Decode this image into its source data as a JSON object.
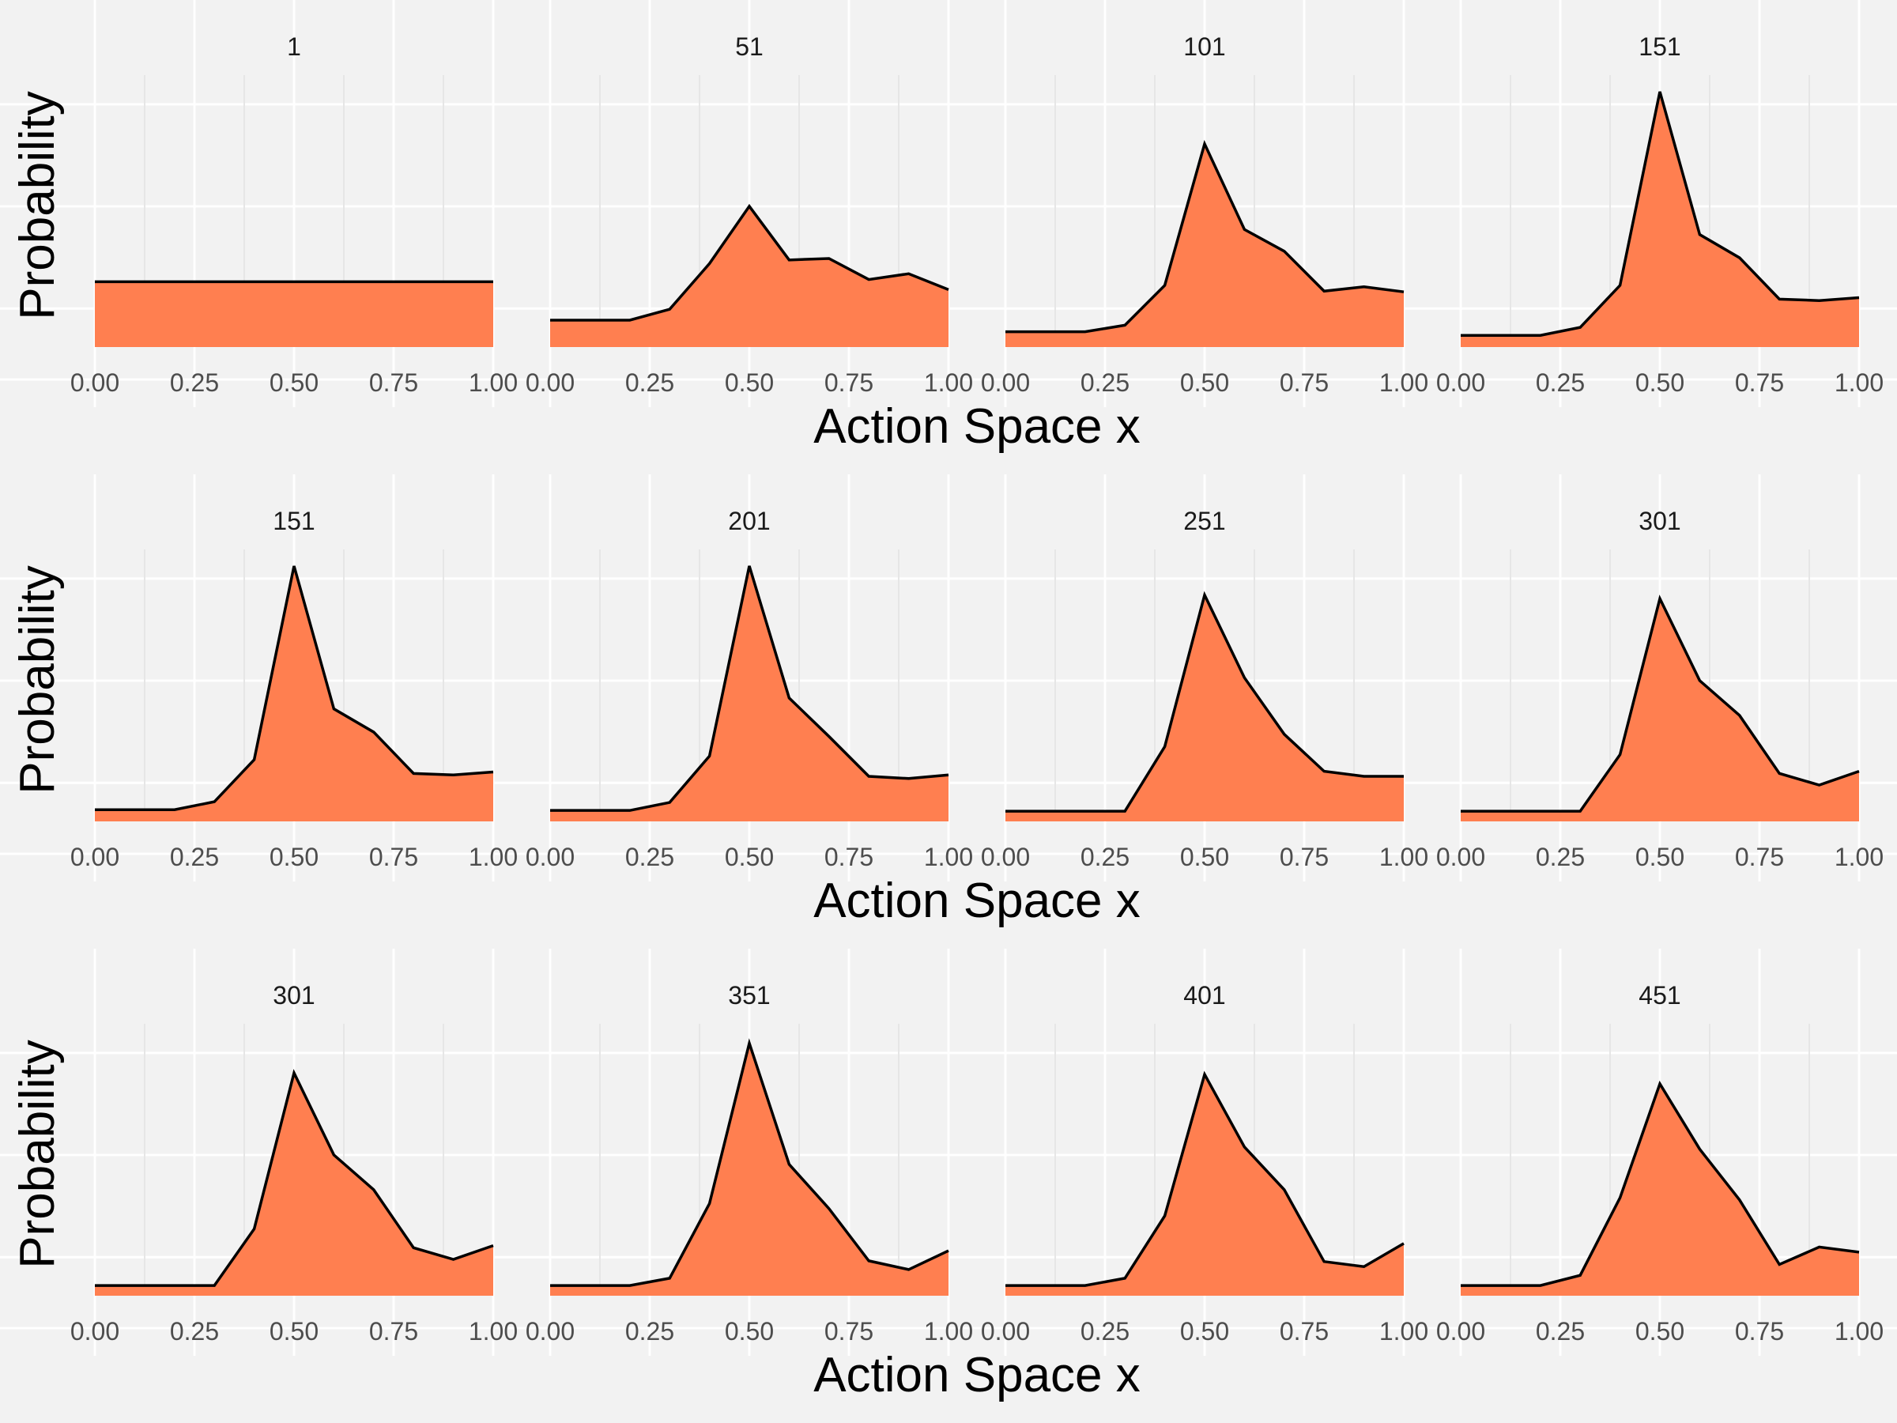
{
  "chart_data": {
    "type": "area",
    "layout": "faceted 3 rows x 4 columns",
    "xlabel": "Action Space x",
    "ylabel": "Probability",
    "x": [
      0.0,
      0.1,
      0.2,
      0.3,
      0.4,
      0.5,
      0.6,
      0.7,
      0.8,
      0.9,
      1.0
    ],
    "x_ticks": [
      "0.00",
      "0.25",
      "0.50",
      "0.75",
      "1.00"
    ],
    "xlim": [
      0,
      1
    ],
    "ylim": [
      0,
      0.34
    ],
    "y_tick_labels_shown": false,
    "grid": true,
    "colors": {
      "fill": "#ff7f50",
      "line": "#000000",
      "background": "#f2f2f2",
      "grid": "#ffffff"
    },
    "rows": [
      {
        "panels": [
          {
            "title": "1",
            "values": [
              0.0769,
              0.0769,
              0.0769,
              0.0769,
              0.0769,
              0.0769,
              0.0769,
              0.0769,
              0.0769,
              0.0769,
              0.0769
            ]
          },
          {
            "title": "51",
            "values": [
              0.024,
              0.024,
              0.024,
              0.039,
              0.102,
              0.181,
              0.107,
              0.109,
              0.08,
              0.088,
              0.066
            ]
          },
          {
            "title": "101",
            "values": [
              0.008,
              0.008,
              0.008,
              0.017,
              0.072,
              0.267,
              0.149,
              0.119,
              0.064,
              0.07,
              0.063
            ]
          },
          {
            "title": "151",
            "values": [
              0.003,
              0.003,
              0.003,
              0.014,
              0.072,
              0.339,
              0.142,
              0.11,
              0.053,
              0.051,
              0.055
            ]
          }
        ]
      },
      {
        "panels": [
          {
            "title": "151",
            "values": [
              0.003,
              0.003,
              0.003,
              0.014,
              0.072,
              0.339,
              0.142,
              0.11,
              0.053,
              0.051,
              0.055
            ]
          },
          {
            "title": "201",
            "values": [
              0.002,
              0.002,
              0.002,
              0.013,
              0.077,
              0.339,
              0.157,
              0.104,
              0.049,
              0.046,
              0.051
            ]
          },
          {
            "title": "251",
            "values": [
              0.001,
              0.001,
              0.001,
              0.001,
              0.09,
              0.299,
              0.185,
              0.107,
              0.056,
              0.049,
              0.049
            ]
          },
          {
            "title": "301",
            "values": [
              0.001,
              0.001,
              0.001,
              0.001,
              0.079,
              0.294,
              0.181,
              0.133,
              0.053,
              0.037,
              0.056
            ]
          }
        ]
      },
      {
        "panels": [
          {
            "title": "301",
            "values": [
              0.001,
              0.001,
              0.001,
              0.001,
              0.079,
              0.294,
              0.181,
              0.133,
              0.053,
              0.037,
              0.056
            ]
          },
          {
            "title": "351",
            "values": [
              0.001,
              0.001,
              0.001,
              0.011,
              0.114,
              0.335,
              0.168,
              0.107,
              0.035,
              0.023,
              0.049
            ]
          },
          {
            "title": "401",
            "values": [
              0.001,
              0.001,
              0.001,
              0.011,
              0.097,
              0.292,
              0.192,
              0.133,
              0.034,
              0.027,
              0.059
            ]
          },
          {
            "title": "451",
            "values": [
              0.001,
              0.001,
              0.001,
              0.015,
              0.122,
              0.279,
              0.189,
              0.119,
              0.03,
              0.054,
              0.047
            ]
          }
        ]
      }
    ]
  }
}
